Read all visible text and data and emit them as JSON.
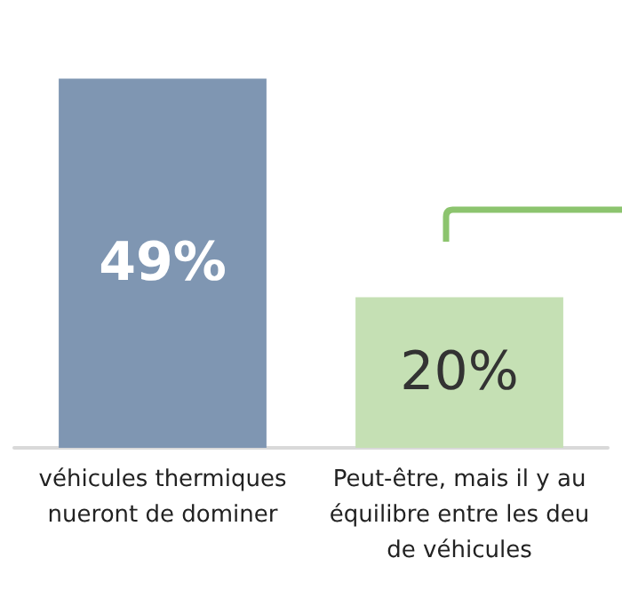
{
  "chart_data": {
    "type": "bar",
    "categories": [
      "véhicules thermiques\nnueront de dominer",
      "Peut-être, mais il y au\néquilibre entre les deu\nde véhicules"
    ],
    "values": [
      49,
      20
    ],
    "colors": [
      "#7f96b2",
      "#c5e0b4"
    ],
    "value_labels": [
      "49%",
      "20%"
    ]
  }
}
